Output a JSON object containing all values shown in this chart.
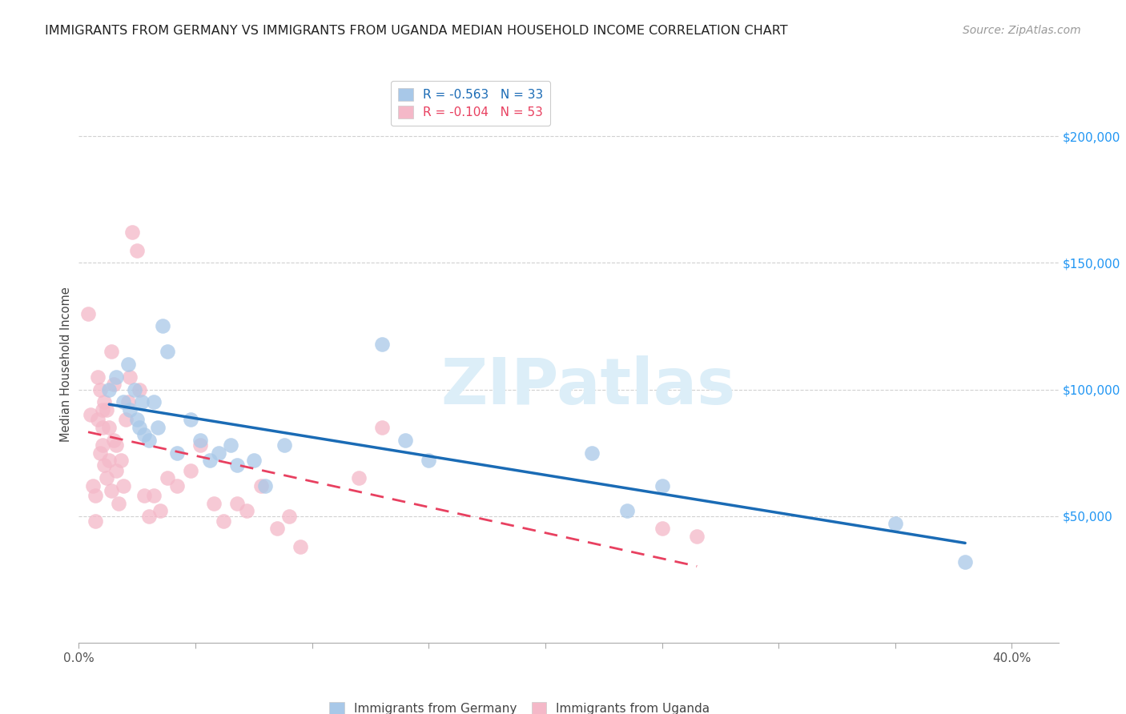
{
  "title": "IMMIGRANTS FROM GERMANY VS IMMIGRANTS FROM UGANDA MEDIAN HOUSEHOLD INCOME CORRELATION CHART",
  "source": "Source: ZipAtlas.com",
  "ylabel": "Median Household Income",
  "yticks": [
    50000,
    100000,
    150000,
    200000
  ],
  "ytick_labels": [
    "$50,000",
    "$100,000",
    "$150,000",
    "$200,000"
  ],
  "xlim": [
    0.0,
    0.42
  ],
  "ylim": [
    0,
    220000
  ],
  "germany_color": "#a8c8e8",
  "uganda_color": "#f4b8c8",
  "trendline_germany_color": "#1a6bb5",
  "trendline_uganda_color": "#e84060",
  "watermark_text": "ZIPatlas",
  "watermark_color": "#dceef8",
  "germany_r": -0.563,
  "germany_n": 33,
  "uganda_r": -0.104,
  "uganda_n": 53,
  "germany_x": [
    0.013,
    0.016,
    0.019,
    0.021,
    0.022,
    0.024,
    0.025,
    0.026,
    0.027,
    0.028,
    0.03,
    0.032,
    0.034,
    0.036,
    0.038,
    0.042,
    0.048,
    0.052,
    0.056,
    0.06,
    0.065,
    0.068,
    0.075,
    0.08,
    0.088,
    0.13,
    0.14,
    0.15,
    0.22,
    0.235,
    0.25,
    0.35,
    0.38
  ],
  "germany_y": [
    100000,
    105000,
    95000,
    110000,
    92000,
    100000,
    88000,
    85000,
    95000,
    82000,
    80000,
    95000,
    85000,
    125000,
    115000,
    75000,
    88000,
    80000,
    72000,
    75000,
    78000,
    70000,
    72000,
    62000,
    78000,
    118000,
    80000,
    72000,
    75000,
    52000,
    62000,
    47000,
    32000
  ],
  "uganda_x": [
    0.004,
    0.005,
    0.006,
    0.007,
    0.007,
    0.008,
    0.008,
    0.009,
    0.009,
    0.01,
    0.01,
    0.01,
    0.011,
    0.011,
    0.012,
    0.012,
    0.013,
    0.013,
    0.014,
    0.014,
    0.015,
    0.015,
    0.016,
    0.016,
    0.017,
    0.018,
    0.019,
    0.02,
    0.021,
    0.022,
    0.023,
    0.025,
    0.026,
    0.028,
    0.03,
    0.032,
    0.035,
    0.038,
    0.042,
    0.048,
    0.052,
    0.058,
    0.062,
    0.068,
    0.072,
    0.078,
    0.085,
    0.09,
    0.095,
    0.12,
    0.13,
    0.25,
    0.265
  ],
  "uganda_y": [
    130000,
    90000,
    62000,
    58000,
    48000,
    105000,
    88000,
    100000,
    75000,
    92000,
    85000,
    78000,
    70000,
    95000,
    65000,
    92000,
    72000,
    85000,
    60000,
    115000,
    80000,
    102000,
    68000,
    78000,
    55000,
    72000,
    62000,
    88000,
    95000,
    105000,
    162000,
    155000,
    100000,
    58000,
    50000,
    58000,
    52000,
    65000,
    62000,
    68000,
    78000,
    55000,
    48000,
    55000,
    52000,
    62000,
    45000,
    50000,
    38000,
    65000,
    85000,
    45000,
    42000
  ]
}
